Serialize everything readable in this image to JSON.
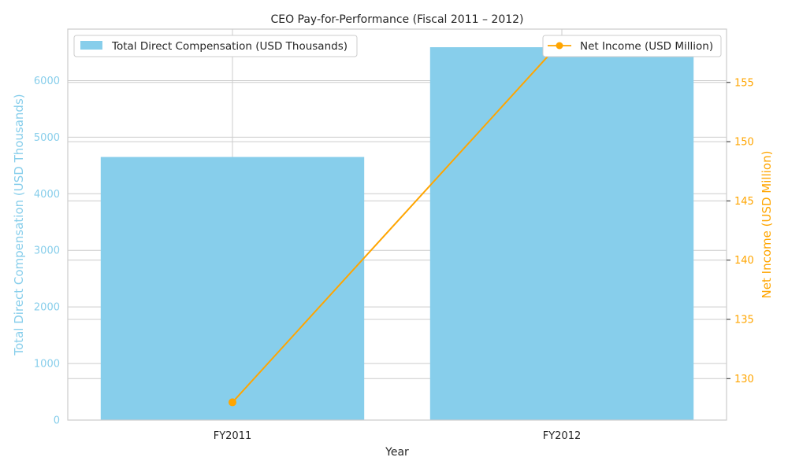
{
  "chart_data": {
    "type": "bar",
    "title": "CEO Pay-for-Performance (Fiscal 2011 – 2012)",
    "xlabel": "Year",
    "categories": [
      "FY2011",
      "FY2012"
    ],
    "series": [
      {
        "name": "Total Direct Compensation (USD Thousands)",
        "type": "bar",
        "axis": "left",
        "values": [
          4650,
          6590
        ],
        "color": "#87CEEB"
      },
      {
        "name": "Net Income (USD Million)",
        "type": "line",
        "axis": "right",
        "values": [
          128.0,
          158.5
        ],
        "color": "#FFA500",
        "marker": "circle"
      }
    ],
    "ylabel_left": "Total Direct Compensation (USD Thousands)",
    "ylabel_right": "Net Income (USD Million)",
    "ylim_left": [
      0,
      6910
    ],
    "yticks_left": [
      0,
      1000,
      2000,
      3000,
      4000,
      5000,
      6000
    ],
    "ylim_right": [
      126.5,
      159.5
    ],
    "yticks_right": [
      130,
      135,
      140,
      145,
      150,
      155
    ],
    "grid": true,
    "legend_left_placement": "upper left",
    "legend_right_placement": "upper right",
    "left_axis_color": "#87CEEB",
    "right_axis_color": "#FFA500"
  }
}
